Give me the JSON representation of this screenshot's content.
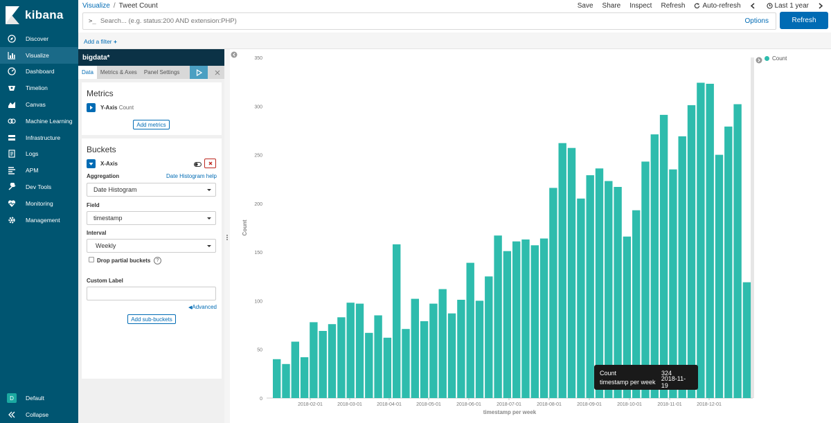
{
  "app": {
    "brand": "kibana"
  },
  "sidebar": {
    "items": [
      {
        "label": "Discover",
        "icon": "compass-icon"
      },
      {
        "label": "Visualize",
        "icon": "bar-chart-icon"
      },
      {
        "label": "Dashboard",
        "icon": "dashboard-icon"
      },
      {
        "label": "Timelion",
        "icon": "timelion-icon"
      },
      {
        "label": "Canvas",
        "icon": "canvas-icon"
      },
      {
        "label": "Machine Learning",
        "icon": "machine-learning-icon"
      },
      {
        "label": "Infrastructure",
        "icon": "infrastructure-icon"
      },
      {
        "label": "Logs",
        "icon": "logs-icon"
      },
      {
        "label": "APM",
        "icon": "apm-icon"
      },
      {
        "label": "Dev Tools",
        "icon": "wrench-icon"
      },
      {
        "label": "Monitoring",
        "icon": "heartbeat-icon"
      },
      {
        "label": "Management",
        "icon": "gear-icon"
      }
    ],
    "active": "Visualize",
    "space": {
      "badge": "D",
      "label": "Default"
    },
    "collapse_label": "Collapse"
  },
  "header": {
    "breadcrumb_link": "Visualize",
    "breadcrumb_sep": "/",
    "breadcrumb_current": "Tweet Count",
    "menu": {
      "save": "Save",
      "share": "Share",
      "inspect": "Inspect",
      "refresh": "Refresh",
      "auto_refresh": "Auto-refresh",
      "time_range": "Last 1 year"
    }
  },
  "query": {
    "prompt": ">_",
    "placeholder": "Search... (e.g. status:200 AND extension:PHP)",
    "options_label": "Options",
    "refresh_label": "Refresh"
  },
  "filters": {
    "add_filter": "Add a filter"
  },
  "editor": {
    "index_title": "bigdata*",
    "tabs": [
      "Data",
      "Metrics & Axes",
      "Panel Settings"
    ],
    "metrics": {
      "title": "Metrics",
      "agg_label": "Y-Axis",
      "agg_sub": "Count",
      "add_label": "Add metrics"
    },
    "buckets": {
      "title": "Buckets",
      "agg_label": "X-Axis",
      "aggregation_label": "Aggregation",
      "aggregation_help": "Date Histogram help",
      "aggregation_value": "Date Histogram",
      "field_label": "Field",
      "field_value": "timestamp",
      "interval_label": "Interval",
      "interval_value": "Weekly",
      "drop_partial": "Drop partial buckets",
      "custom_label": "Custom Label",
      "custom_label_value": "",
      "advanced": "Advanced",
      "add_sub": "Add sub-buckets"
    }
  },
  "chart_data": {
    "type": "bar",
    "color": "#2ebcad",
    "xlabel": "timestamp per week",
    "ylabel": "Count",
    "ylim": [
      0,
      350
    ],
    "yticks": [
      0,
      50,
      100,
      150,
      200,
      250,
      300,
      350
    ],
    "x_tick_labels": [
      "2018-02-01",
      "2018-03-01",
      "2018-04-01",
      "2018-05-01",
      "2018-06-01",
      "2018-07-01",
      "2018-08-01",
      "2018-09-01",
      "2018-10-01",
      "2018-11-01",
      "2018-12-01"
    ],
    "values": [
      40,
      35,
      58,
      42,
      78,
      69,
      76,
      83,
      98,
      97,
      67,
      85,
      62,
      158,
      71,
      102,
      79,
      97,
      112,
      87,
      101,
      139,
      100,
      125,
      167,
      151,
      161,
      163,
      157,
      164,
      216,
      262,
      257,
      205,
      229,
      236,
      223,
      217,
      166,
      193,
      243,
      271,
      291,
      235,
      269,
      301,
      324,
      323,
      250,
      279,
      302,
      119
    ],
    "legend": [
      "Count"
    ],
    "legend_position": "top-right",
    "tooltip": {
      "k1": "Count",
      "v1": "324",
      "k2": "timestamp per week",
      "v2": "2018-11-19"
    }
  }
}
